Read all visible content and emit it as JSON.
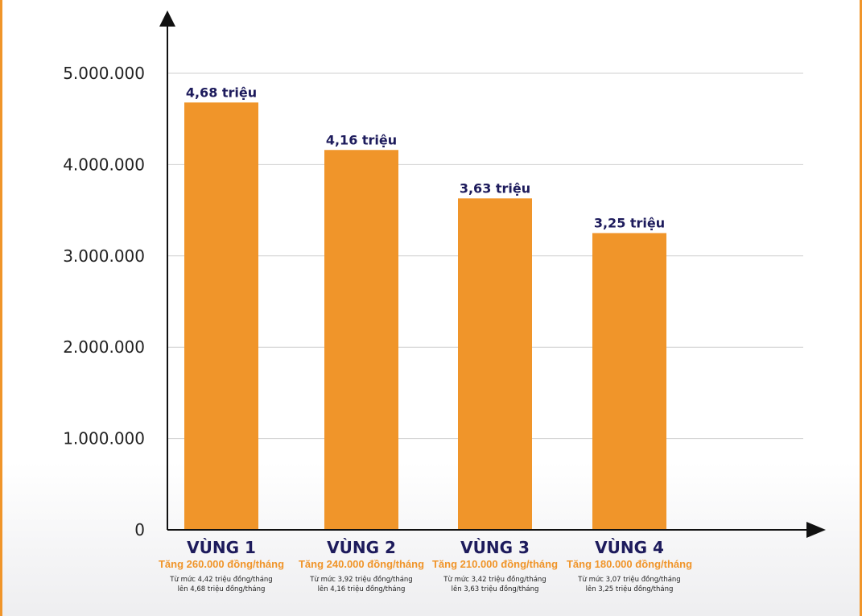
{
  "chart_data": {
    "type": "bar",
    "categories": [
      "VÙNG 1",
      "VÙNG 2",
      "VÙNG 3",
      "VÙNG 4"
    ],
    "values": [
      4680000,
      4160000,
      3630000,
      3250000
    ],
    "data_labels": [
      "4,68 triệu",
      "4,16 triệu",
      "3,63 triệu",
      "3,25 triệu"
    ],
    "increase_labels": [
      "Tăng 260.000 đồng/tháng",
      "Tăng 240.000 đồng/tháng",
      "Tăng 210.000 đồng/tháng",
      "Tăng 180.000 đồng/tháng"
    ],
    "details": [
      [
        "Từ mức 4,42 triệu đồng/tháng",
        "lên 4,68 triệu đồng/tháng"
      ],
      [
        "Từ mức 3,92 triệu đồng/tháng",
        "lên 4,16 triệu đồng/tháng"
      ],
      [
        "Từ mức 3,42 triệu đồng/tháng",
        "lên 3,63 triệu đồng/tháng"
      ],
      [
        "Từ mức 3,07 triệu đồng/tháng",
        "lên 3,25 triệu đồng/tháng"
      ]
    ],
    "yticks": [
      0,
      1000000,
      2000000,
      3000000,
      4000000,
      5000000
    ],
    "ytick_labels": [
      "0",
      "1.000.000",
      "2.000.000",
      "3.000.000",
      "4.000.000",
      "5.000.000"
    ],
    "ylim": [
      0,
      5000000
    ],
    "grid": true,
    "title": "",
    "xlabel": "",
    "ylabel": "",
    "colors": {
      "bar": "#f0952a",
      "label": "#1d1b5c",
      "increase": "#f0952a",
      "frame": "#f0952a"
    }
  }
}
